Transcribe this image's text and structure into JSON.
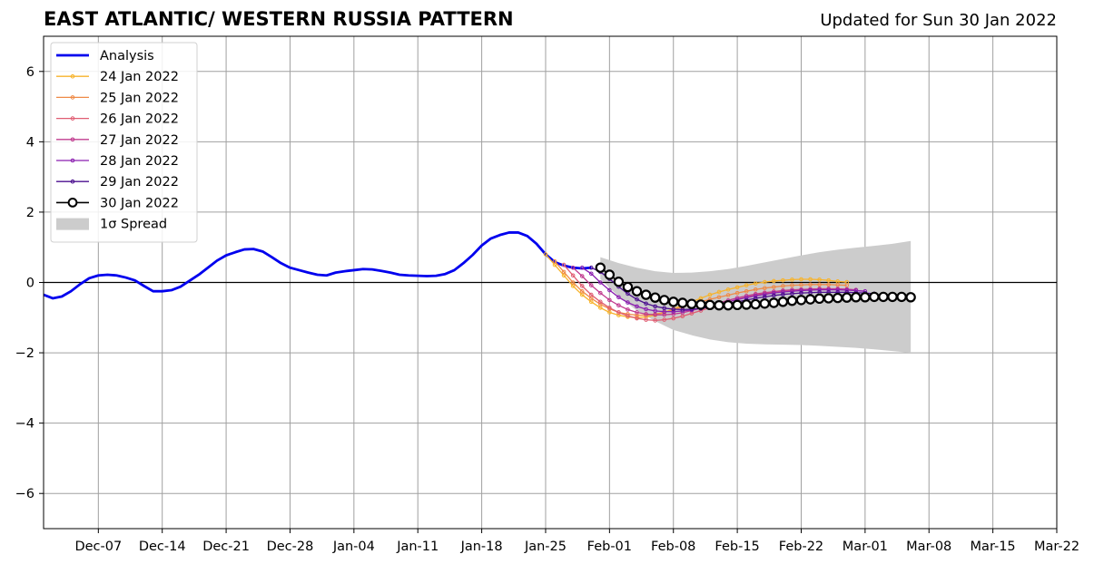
{
  "chart_data": {
    "type": "line",
    "title": "EAST ATLANTIC/ WESTERN RUSSIA PATTERN",
    "subtitle": "Updated for Sun 30 Jan 2022",
    "xlabel": "",
    "ylabel": "",
    "xlim": [
      "2021-12-01",
      "2022-03-22"
    ],
    "ylim": [
      -7,
      7
    ],
    "grid": true,
    "legend_position": "top-left",
    "x_ticks": [
      "2021-12-07",
      "2021-12-14",
      "2021-12-21",
      "2021-12-28",
      "2022-01-04",
      "2022-01-11",
      "2022-01-18",
      "2022-01-25",
      "2022-02-01",
      "2022-02-08",
      "2022-02-15",
      "2022-02-22",
      "2022-03-01",
      "2022-03-08",
      "2022-03-15",
      "2022-03-22"
    ],
    "x_tick_labels": [
      "Dec-07",
      "Dec-14",
      "Dec-21",
      "Dec-28",
      "Jan-04",
      "Jan-11",
      "Jan-18",
      "Jan-25",
      "Feb-01",
      "Feb-08",
      "Feb-15",
      "Feb-22",
      "Mar-01",
      "Mar-08",
      "Mar-15",
      "Mar-22"
    ],
    "y_ticks": [
      -6,
      -4,
      -2,
      0,
      2,
      4,
      6
    ],
    "y_tick_labels": [
      "−6",
      "−4",
      "−2",
      "0",
      "2",
      "4",
      "6"
    ],
    "analysis": {
      "name": "Analysis",
      "color": "#0000ee",
      "x": [
        "2021-12-01",
        "2021-12-02",
        "2021-12-03",
        "2021-12-04",
        "2021-12-05",
        "2021-12-06",
        "2021-12-07",
        "2021-12-08",
        "2021-12-09",
        "2021-12-10",
        "2021-12-11",
        "2021-12-12",
        "2021-12-13",
        "2021-12-14",
        "2021-12-15",
        "2021-12-16",
        "2021-12-17",
        "2021-12-18",
        "2021-12-19",
        "2021-12-20",
        "2021-12-21",
        "2021-12-22",
        "2021-12-23",
        "2021-12-24",
        "2021-12-25",
        "2021-12-26",
        "2021-12-27",
        "2021-12-28",
        "2021-12-29",
        "2021-12-30",
        "2021-12-31",
        "2022-01-01",
        "2022-01-02",
        "2022-01-03",
        "2022-01-04",
        "2022-01-05",
        "2022-01-06",
        "2022-01-07",
        "2022-01-08",
        "2022-01-09",
        "2022-01-10",
        "2022-01-11",
        "2022-01-12",
        "2022-01-13",
        "2022-01-14",
        "2022-01-15",
        "2022-01-16",
        "2022-01-17",
        "2022-01-18",
        "2022-01-19",
        "2022-01-20",
        "2022-01-21",
        "2022-01-22",
        "2022-01-23",
        "2022-01-24",
        "2022-01-25",
        "2022-01-26",
        "2022-01-27",
        "2022-01-28",
        "2022-01-29",
        "2022-01-30"
      ],
      "values": [
        -0.35,
        -0.45,
        -0.4,
        -0.25,
        -0.05,
        0.12,
        0.2,
        0.22,
        0.2,
        0.14,
        0.06,
        -0.1,
        -0.25,
        -0.25,
        -0.22,
        -0.12,
        0.05,
        0.22,
        0.42,
        0.62,
        0.77,
        0.86,
        0.94,
        0.95,
        0.88,
        0.72,
        0.55,
        0.42,
        0.35,
        0.28,
        0.22,
        0.2,
        0.28,
        0.32,
        0.35,
        0.38,
        0.37,
        0.33,
        0.28,
        0.22,
        0.2,
        0.19,
        0.18,
        0.19,
        0.24,
        0.35,
        0.55,
        0.78,
        1.05,
        1.25,
        1.35,
        1.42,
        1.42,
        1.32,
        1.1,
        0.8,
        0.58,
        0.48,
        0.42,
        0.4,
        0.42
      ]
    },
    "forecasts": [
      {
        "name": "24 Jan 2022",
        "color": "#f7b32b",
        "start": "2022-01-25",
        "values": [
          0.8,
          0.5,
          0.2,
          -0.1,
          -0.35,
          -0.55,
          -0.72,
          -0.85,
          -0.93,
          -0.98,
          -1.0,
          -0.98,
          -0.93,
          -0.85,
          -0.75,
          -0.65,
          -0.55,
          -0.45,
          -0.35,
          -0.27,
          -0.2,
          -0.14,
          -0.08,
          -0.03,
          0.01,
          0.04,
          0.06,
          0.08,
          0.09,
          0.09,
          0.08,
          0.06,
          0.03,
          0.01
        ]
      },
      {
        "name": "25 Jan 2022",
        "color": "#ef8a47",
        "start": "2022-01-26",
        "values": [
          0.6,
          0.3,
          0.0,
          -0.25,
          -0.45,
          -0.62,
          -0.75,
          -0.85,
          -0.9,
          -0.93,
          -0.93,
          -0.9,
          -0.85,
          -0.78,
          -0.7,
          -0.62,
          -0.55,
          -0.48,
          -0.42,
          -0.36,
          -0.3,
          -0.25,
          -0.2,
          -0.16,
          -0.13,
          -0.1,
          -0.08,
          -0.07,
          -0.06,
          -0.06,
          -0.06,
          -0.07,
          -0.08
        ]
      },
      {
        "name": "26 Jan 2022",
        "color": "#e05d72",
        "start": "2022-01-27",
        "values": [
          0.5,
          0.2,
          -0.1,
          -0.35,
          -0.55,
          -0.72,
          -0.85,
          -0.95,
          -1.02,
          -1.06,
          -1.08,
          -1.06,
          -1.02,
          -0.96,
          -0.88,
          -0.8,
          -0.72,
          -0.64,
          -0.56,
          -0.48,
          -0.42,
          -0.36,
          -0.31,
          -0.27,
          -0.24,
          -0.22,
          -0.2,
          -0.19,
          -0.18,
          -0.18,
          -0.19,
          -0.2,
          -0.22
        ]
      },
      {
        "name": "27 Jan 2022",
        "color": "#c13b8f",
        "start": "2022-01-28",
        "values": [
          0.42,
          0.18,
          -0.08,
          -0.3,
          -0.5,
          -0.65,
          -0.77,
          -0.85,
          -0.9,
          -0.92,
          -0.92,
          -0.9,
          -0.86,
          -0.8,
          -0.73,
          -0.65,
          -0.58,
          -0.51,
          -0.44,
          -0.38,
          -0.33,
          -0.29,
          -0.26,
          -0.23,
          -0.21,
          -0.2,
          -0.19,
          -0.18,
          -0.18,
          -0.18,
          -0.19,
          -0.21
        ]
      },
      {
        "name": "28 Jan 2022",
        "color": "#8b1fb0",
        "start": "2022-01-29",
        "values": [
          0.42,
          0.25,
          0.0,
          -0.22,
          -0.42,
          -0.57,
          -0.68,
          -0.76,
          -0.81,
          -0.83,
          -0.83,
          -0.81,
          -0.78,
          -0.73,
          -0.67,
          -0.61,
          -0.55,
          -0.49,
          -0.43,
          -0.38,
          -0.34,
          -0.3,
          -0.27,
          -0.25,
          -0.23,
          -0.22,
          -0.21,
          -0.21,
          -0.21,
          -0.22,
          -0.23,
          -0.25
        ]
      },
      {
        "name": "29 Jan 2022",
        "color": "#4b0f8f",
        "start": "2022-01-30",
        "values": [
          0.42,
          0.3,
          0.1,
          -0.12,
          -0.32,
          -0.48,
          -0.6,
          -0.68,
          -0.73,
          -0.76,
          -0.77,
          -0.76,
          -0.74,
          -0.7,
          -0.65,
          -0.6,
          -0.55,
          -0.5,
          -0.45,
          -0.41,
          -0.37,
          -0.34,
          -0.32,
          -0.3,
          -0.29,
          -0.28,
          -0.28,
          -0.28,
          -0.28,
          -0.29,
          -0.3,
          -0.32
        ]
      },
      {
        "name": "30 Jan 2022",
        "color": "#000000",
        "start": "2022-01-31",
        "markers": "open-circle",
        "values": [
          0.42,
          0.22,
          0.02,
          -0.13,
          -0.25,
          -0.35,
          -0.43,
          -0.5,
          -0.55,
          -0.58,
          -0.61,
          -0.63,
          -0.64,
          -0.65,
          -0.65,
          -0.64,
          -0.63,
          -0.62,
          -0.6,
          -0.58,
          -0.55,
          -0.52,
          -0.5,
          -0.48,
          -0.46,
          -0.45,
          -0.44,
          -0.43,
          -0.42,
          -0.42,
          -0.41,
          -0.41,
          -0.41,
          -0.41,
          -0.42
        ]
      }
    ],
    "spread": {
      "name": "1σ Spread",
      "color": "#cccccc",
      "x": [
        "2022-01-31",
        "2022-02-02",
        "2022-02-04",
        "2022-02-06",
        "2022-02-08",
        "2022-02-10",
        "2022-02-12",
        "2022-02-14",
        "2022-02-16",
        "2022-02-18",
        "2022-02-20",
        "2022-02-22",
        "2022-02-24",
        "2022-02-26",
        "2022-02-28",
        "2022-03-02",
        "2022-03-04",
        "2022-03-06"
      ],
      "upper": [
        0.72,
        0.55,
        0.42,
        0.32,
        0.27,
        0.28,
        0.32,
        0.38,
        0.47,
        0.57,
        0.67,
        0.77,
        0.86,
        0.93,
        0.99,
        1.04,
        1.1,
        1.18
      ],
      "lower": [
        0.1,
        -0.4,
        -0.8,
        -1.1,
        -1.35,
        -1.5,
        -1.62,
        -1.7,
        -1.74,
        -1.76,
        -1.77,
        -1.78,
        -1.8,
        -1.83,
        -1.86,
        -1.9,
        -1.95,
        -2.0
      ]
    },
    "legend": [
      {
        "label": "Analysis",
        "color": "#0000ee",
        "kind": "thick-line"
      },
      {
        "label": "24 Jan 2022",
        "color": "#f7b32b",
        "kind": "line-marker"
      },
      {
        "label": "25 Jan 2022",
        "color": "#ef8a47",
        "kind": "line-marker"
      },
      {
        "label": "26 Jan 2022",
        "color": "#e05d72",
        "kind": "line-marker"
      },
      {
        "label": "27 Jan 2022",
        "color": "#c13b8f",
        "kind": "line-marker"
      },
      {
        "label": "28 Jan 2022",
        "color": "#8b1fb0",
        "kind": "line-marker"
      },
      {
        "label": "29 Jan 2022",
        "color": "#4b0f8f",
        "kind": "line-marker"
      },
      {
        "label": "30 Jan 2022",
        "color": "#000000",
        "kind": "open-circle"
      },
      {
        "label": "1σ Spread",
        "color": "#cccccc",
        "kind": "patch"
      }
    ]
  }
}
